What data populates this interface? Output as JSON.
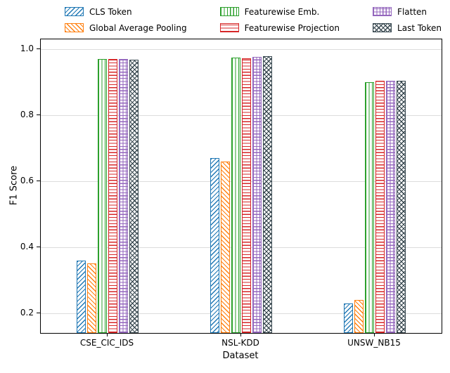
{
  "figure": {
    "background": "#ffffff"
  },
  "chart_data": {
    "type": "bar",
    "title": "",
    "xlabel": "Dataset",
    "ylabel": "F1 Score",
    "categories": [
      "CSE_CIC_IDS",
      "NSL-KDD",
      "UNSW_NB15"
    ],
    "yticks": [
      0.2,
      0.4,
      0.6,
      0.8,
      1.0
    ],
    "ylim": [
      0.14,
      1.03
    ],
    "grid": "horizontal",
    "legend_position": "top",
    "bar_style": "white-face-colored-edge-hatched",
    "series": [
      {
        "name": "CLS Token",
        "color": "#1f77b4",
        "hatch": "forward-diagonal",
        "values": [
          0.36,
          0.67,
          0.23
        ]
      },
      {
        "name": "Global Average Pooling",
        "color": "#ff7f0e",
        "hatch": "back-diagonal",
        "values": [
          0.35,
          0.66,
          0.24
        ]
      },
      {
        "name": "Featurewise Emb.",
        "color": "#2ca02c",
        "hatch": "vertical",
        "values": [
          0.97,
          0.975,
          0.9
        ]
      },
      {
        "name": "Featurewise Projection",
        "color": "#d62728",
        "hatch": "horizontal",
        "values": [
          0.97,
          0.973,
          0.905
        ]
      },
      {
        "name": "Flatten",
        "color": "#9467bd",
        "hatch": "grid",
        "values": [
          0.97,
          0.976,
          0.905
        ]
      },
      {
        "name": "Last Token",
        "color": "#37474f",
        "hatch": "cross",
        "values": [
          0.968,
          0.978,
          0.905
        ]
      }
    ]
  }
}
